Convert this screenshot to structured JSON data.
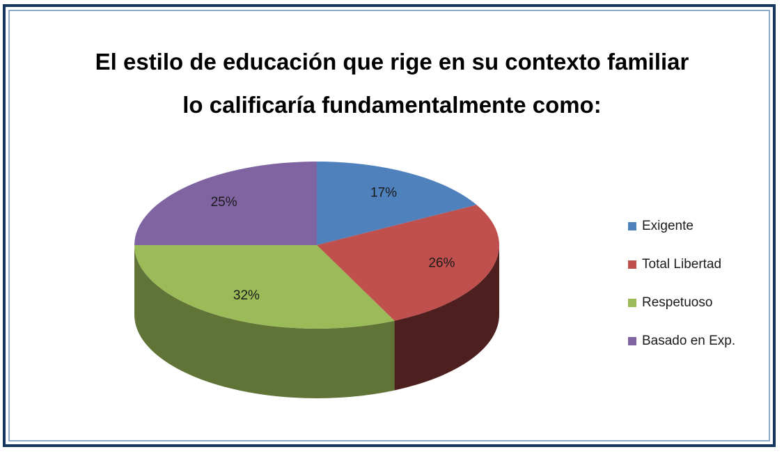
{
  "chart_data": {
    "type": "pie",
    "title": "El estilo de educación que rige en su contexto familiar lo calificaría fundamentalmente como:",
    "categories": [
      "Exigente",
      "Total Libertad",
      "Respetuoso",
      "Basado en Exp."
    ],
    "values": [
      17,
      26,
      32,
      25
    ],
    "value_labels": [
      "17%",
      "26%",
      "32%",
      "25%"
    ],
    "colors": [
      "#4f81bd",
      "#c0504d",
      "#9bbb59",
      "#8064a2"
    ],
    "legend": "right"
  }
}
